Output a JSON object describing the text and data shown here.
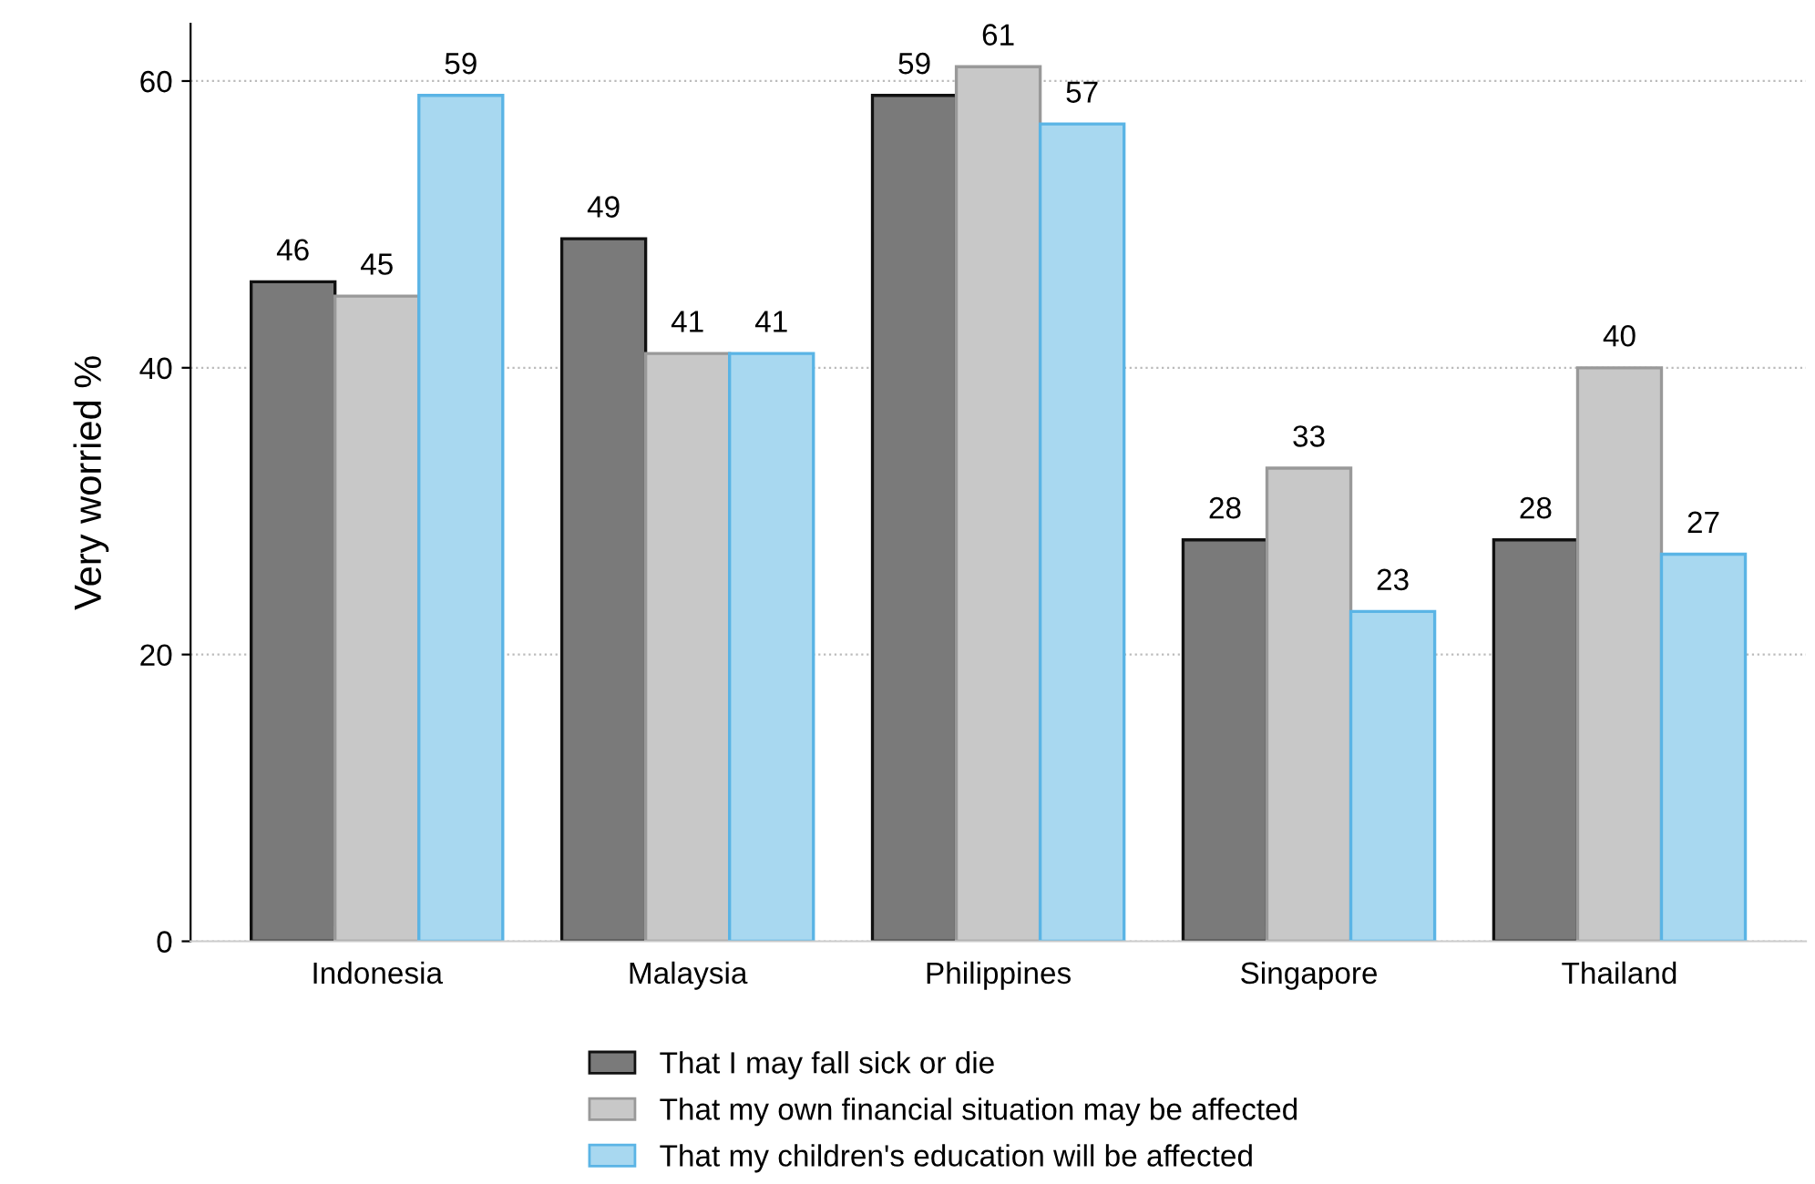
{
  "chart_data": {
    "type": "bar",
    "ylabel": "Very worried %",
    "categories": [
      "Indonesia",
      "Malaysia",
      "Philippines",
      "Singapore",
      "Thailand"
    ],
    "series": [
      {
        "name": "That I may fall sick or die",
        "color": "#7a7a7a",
        "values": [
          46,
          49,
          59,
          28,
          28
        ]
      },
      {
        "name": "That my own financial situation may be affected",
        "color": "#c8c8c8",
        "values": [
          45,
          41,
          61,
          33,
          40
        ]
      },
      {
        "name": "That my children's education will be affected",
        "color": "#a8d8f0",
        "values": [
          59,
          41,
          57,
          23,
          27
        ]
      }
    ],
    "ylim": [
      0,
      64
    ],
    "yticks": [
      0,
      20,
      40,
      60
    ],
    "grid": "y",
    "legend": "bottom",
    "data_labels": true
  }
}
